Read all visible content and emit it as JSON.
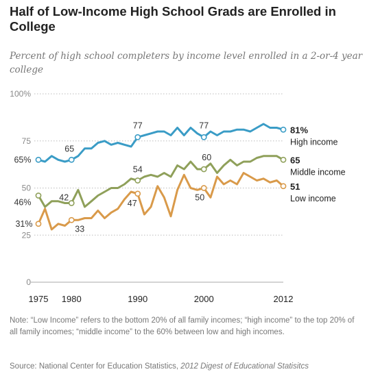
{
  "header": {
    "title": "Half of Low-Income High School Grads are Enrolled in College",
    "subtitle": "Percent of high school completers by income level enrolled in a 2-or-4 year college"
  },
  "footer": {
    "note": "Note: “Low Income” refers to the bottom 20% of all family incomes; “high income” to the top 20% of all family incomes; “middle income” to the 60% between low and high incomes.",
    "source_prefix": "Source: National Center for Education Statistics, ",
    "source_title": "2012 Digest of Educational Statisitcs"
  },
  "chart_data": {
    "type": "line",
    "title": "Half of Low-Income High School Grads are Enrolled in College",
    "subtitle": "Percent of high school completers by income level enrolled in a 2-or-4 year college",
    "xlabel": "",
    "ylabel": "",
    "xlim": [
      1975,
      2012
    ],
    "ylim": [
      0,
      100
    ],
    "y_ticks": [
      0,
      25,
      50,
      75,
      100
    ],
    "y_tick_labels": [
      "0",
      "25",
      "50",
      "75",
      "100%"
    ],
    "x_ticks": [
      1975,
      1980,
      1990,
      2000,
      2012
    ],
    "grid": true,
    "legend": "direct labels at right end of lines",
    "x": [
      1975,
      1976,
      1977,
      1978,
      1979,
      1980,
      1981,
      1982,
      1983,
      1984,
      1985,
      1986,
      1987,
      1988,
      1989,
      1990,
      1991,
      1992,
      1993,
      1994,
      1995,
      1996,
      1997,
      1998,
      1999,
      2000,
      2001,
      2002,
      2003,
      2004,
      2005,
      2006,
      2007,
      2008,
      2009,
      2010,
      2011,
      2012
    ],
    "series": [
      {
        "name": "High income",
        "color": "#3a9cc6",
        "values": [
          65,
          64,
          67,
          65,
          64,
          65,
          67,
          71,
          71,
          74,
          75,
          73,
          74,
          73,
          72,
          77,
          78,
          79,
          80,
          80,
          78,
          82,
          78,
          82,
          79,
          77,
          80,
          78,
          80,
          80,
          81,
          81,
          80,
          82,
          84,
          82,
          82,
          81
        ],
        "point_labels": [
          {
            "x": 1975,
            "label": "65%"
          },
          {
            "x": 1980,
            "label": "65"
          },
          {
            "x": 1990,
            "label": "77"
          },
          {
            "x": 2000,
            "label": "77"
          }
        ],
        "end_value_label": "81%"
      },
      {
        "name": "Middle income",
        "color": "#8fa05a",
        "values": [
          46,
          40,
          43,
          43,
          42,
          42,
          49,
          40,
          43,
          46,
          48,
          50,
          50,
          52,
          55,
          54,
          56,
          57,
          56,
          58,
          56,
          62,
          60,
          64,
          60,
          60,
          63,
          58,
          62,
          65,
          62,
          64,
          64,
          66,
          67,
          67,
          67,
          65
        ],
        "point_labels": [
          {
            "x": 1975,
            "label": "46%"
          },
          {
            "x": 1980,
            "label": "42"
          },
          {
            "x": 1990,
            "label": "54"
          },
          {
            "x": 2000,
            "label": "60"
          }
        ],
        "end_value_label": "65"
      },
      {
        "name": "Low income",
        "color": "#d99a4a",
        "values": [
          31,
          39,
          28,
          31,
          30,
          33,
          33,
          34,
          34,
          38,
          34,
          37,
          39,
          44,
          48,
          47,
          36,
          40,
          51,
          45,
          35,
          49,
          57,
          50,
          49,
          50,
          45,
          56,
          52,
          54,
          52,
          58,
          56,
          54,
          55,
          53,
          54,
          51
        ],
        "point_labels": [
          {
            "x": 1975,
            "label": "31%"
          },
          {
            "x": 1980,
            "label": "33"
          },
          {
            "x": 1990,
            "label": "47"
          },
          {
            "x": 2000,
            "label": "50"
          }
        ],
        "end_value_label": "51"
      }
    ]
  }
}
